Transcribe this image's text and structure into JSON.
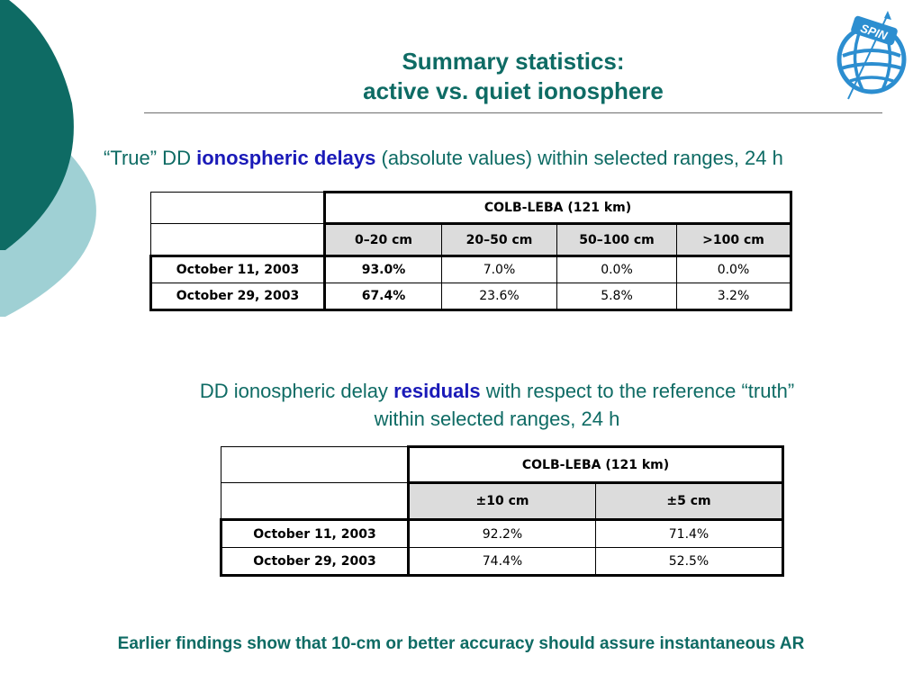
{
  "slide": {
    "title_line1": "Summary statistics:",
    "title_line2": "active vs. quiet ionosphere",
    "logo_text": "SPIN"
  },
  "section1": {
    "pre": "“True” DD ",
    "highlight": "ionospheric delays",
    "post": " (absolute values) within selected ranges, 24 h"
  },
  "table1": {
    "group_header": "COLB-LEBA (121 km)",
    "columns": [
      "0–20 cm",
      "20–50 cm",
      "50–100 cm",
      ">100 cm"
    ],
    "rows": [
      {
        "label": "October 11, 2003",
        "values": [
          "93.0%",
          "7.0%",
          "0.0%",
          "0.0%"
        ]
      },
      {
        "label": "October 29, 2003",
        "values": [
          "67.4%",
          "23.6%",
          "5.8%",
          "3.2%"
        ]
      }
    ]
  },
  "section2": {
    "pre": "DD ionospheric delay ",
    "highlight": "residuals",
    "post": " with respect to the reference “truth”",
    "line2": "within selected ranges, 24 h"
  },
  "table2": {
    "group_header": "COLB-LEBA (121 km)",
    "columns": [
      "±10 cm",
      "±5 cm"
    ],
    "rows": [
      {
        "label": "October 11, 2003",
        "values": [
          "92.2%",
          "71.4%"
        ]
      },
      {
        "label": "October 29, 2003",
        "values": [
          "74.4%",
          "52.5%"
        ]
      }
    ]
  },
  "footer": {
    "text": "Earlier findings show that 10-cm or better accuracy should assure instantaneous AR"
  },
  "colors": {
    "title": "#0e6b64",
    "highlight": "#1a1ab8",
    "deco_dark": "#0e6b64",
    "deco_light": "#9fd0d4",
    "logo_blue": "#2c8ed0",
    "header_gray": "#dcdcdc"
  }
}
